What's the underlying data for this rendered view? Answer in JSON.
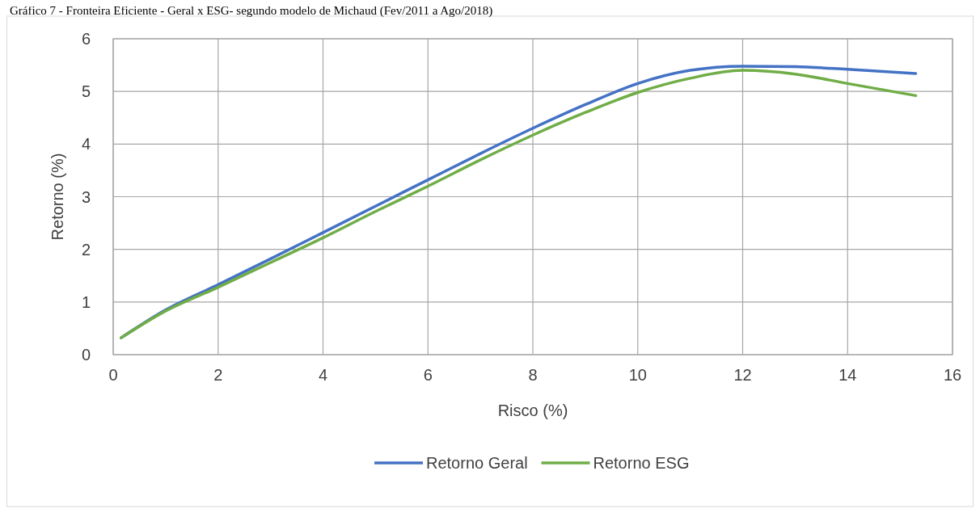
{
  "chart_data": {
    "type": "line",
    "title": "Gráfico 7 - Fronteira Eficiente - Geral x ESG- segundo modelo de Michaud (Fev/2011 a Ago/2018)",
    "xlabel": "Risco  (%)",
    "ylabel": "Retorno (%)",
    "xlim": [
      0,
      16
    ],
    "xticks": [
      0,
      2,
      4,
      6,
      8,
      10,
      12,
      14,
      16
    ],
    "ylim": [
      0,
      6
    ],
    "yticks": [
      0,
      1,
      2,
      3,
      4,
      5,
      6
    ],
    "grid": true,
    "legend": "bottom",
    "marker": "none",
    "line_style": "solid",
    "series": [
      {
        "name": "Retorno Geral",
        "color": "#4472c4",
        "x": [
          0.15,
          1,
          2,
          3,
          4,
          5,
          6,
          7,
          8,
          9,
          10,
          11,
          12,
          13,
          14,
          15.3
        ],
        "values": [
          0.32,
          0.85,
          1.33,
          1.82,
          2.32,
          2.82,
          3.32,
          3.82,
          4.3,
          4.75,
          5.15,
          5.4,
          5.48,
          5.47,
          5.42,
          5.34
        ]
      },
      {
        "name": "Retorno ESG",
        "color": "#70ad47",
        "x": [
          0.15,
          1,
          2,
          3,
          4,
          5,
          6,
          7,
          8,
          9,
          10,
          11,
          12,
          13,
          14,
          15.3
        ],
        "values": [
          0.32,
          0.83,
          1.28,
          1.75,
          2.22,
          2.72,
          3.2,
          3.7,
          4.17,
          4.6,
          4.98,
          5.25,
          5.4,
          5.33,
          5.15,
          4.92
        ]
      }
    ]
  }
}
